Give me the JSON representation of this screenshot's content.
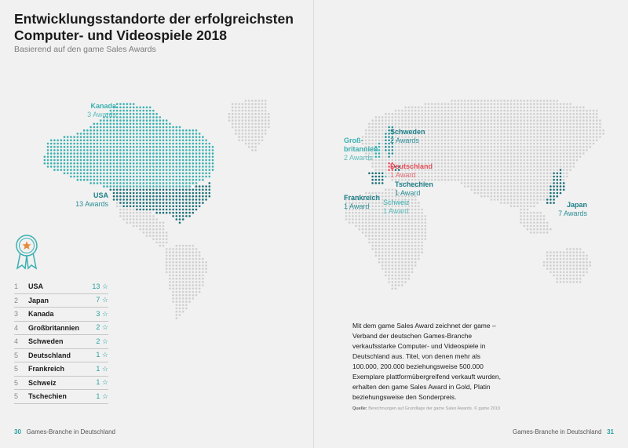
{
  "title": "Entwicklungsstandorte der erfolgreichsten Computer- und Videospiele 2018",
  "subtitle": "Basierend auf den game Sales Awards",
  "map_labels": {
    "kanada": {
      "country": "Kanada",
      "awards": "3 Awards"
    },
    "usa": {
      "country": "USA",
      "awards": "13 Awards"
    },
    "schweden": {
      "country": "Schweden",
      "awards": "2 Awards"
    },
    "grossbritannien": {
      "country": "Groß-\nbritannien",
      "awards": "2 Awards"
    },
    "deutschland": {
      "country": "Deutschland",
      "awards": "1 Award"
    },
    "tschechien": {
      "country": "Tschechien",
      "awards": "1 Award"
    },
    "frankreich": {
      "country": "Frankreich",
      "awards": "1 Award"
    },
    "schweiz": {
      "country": "Schweiz",
      "awards": "1 Award"
    },
    "japan": {
      "country": "Japan",
      "awards": "7 Awards"
    }
  },
  "ranking": [
    {
      "rank": "1",
      "country": "USA",
      "value": "13"
    },
    {
      "rank": "2",
      "country": "Japan",
      "value": "7"
    },
    {
      "rank": "3",
      "country": "Kanada",
      "value": "3"
    },
    {
      "rank": "4",
      "country": "Großbritannien",
      "value": "2"
    },
    {
      "rank": "4",
      "country": "Schweden",
      "value": "2"
    },
    {
      "rank": "5",
      "country": "Deutschland",
      "value": "1"
    },
    {
      "rank": "5",
      "country": "Frankreich",
      "value": "1"
    },
    {
      "rank": "5",
      "country": "Schweiz",
      "value": "1"
    },
    {
      "rank": "5",
      "country": "Tschechien",
      "value": "1"
    }
  ],
  "star_glyph": "☆",
  "note": "Mit dem game Sales Award zeichnet der game – Verband der deutschen Games-Branche verkaufsstarke Computer- und Videospiele in Deutschland aus. Titel, von denen mehr als 100.000, 200.000 beziehungsweise 500.000 Exemplare plattformübergreifend verkauft wurden, erhalten den game Sales Award in Gold, Platin beziehungsweise den Sonderpreis.",
  "source_label": "Quelle:",
  "source_text": "Berechnungen auf Grundlage der game Sales Awards. © game 2019",
  "footer_left": {
    "page": "30",
    "text": "Games-Branche in Deutschland"
  },
  "footer_right": {
    "page": "31",
    "text": "Games-Branche in Deutschland"
  },
  "colors": {
    "teal": "#3ab0b0",
    "dark_teal": "#1c7f88",
    "red": "#e4505c",
    "land": "#cfcfcf",
    "background": "#f1f1f1"
  }
}
